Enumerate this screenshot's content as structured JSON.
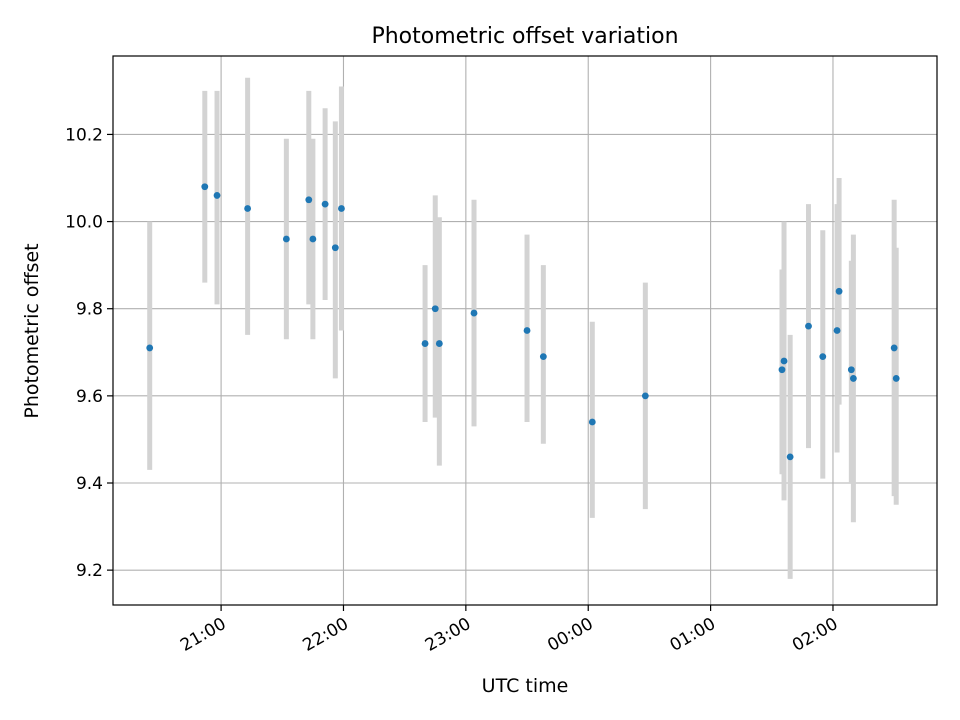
{
  "chart_data": {
    "type": "scatter",
    "title": "Photometric offset variation",
    "xlabel": "UTC time",
    "ylabel": "Photometric offset",
    "x_is_time": true,
    "xlim": [
      "20:07",
      "02:51"
    ],
    "ylim": [
      9.12,
      10.38
    ],
    "xticks": [
      "21:00",
      "22:00",
      "23:00",
      "00:00",
      "01:00",
      "02:00"
    ],
    "xtick_labels": [
      "21:00",
      "22:00",
      "23:00",
      "00:00",
      "01:00",
      "02:00"
    ],
    "yticks": [
      9.2,
      9.4,
      9.6,
      9.8,
      10.0,
      10.2
    ],
    "ytick_labels": [
      "9.2",
      "9.4",
      "9.6",
      "9.8",
      "10.0",
      "10.2"
    ],
    "grid": true,
    "colors": {
      "point": "#1f77b4",
      "errorbar": "#d3d3d3",
      "grid": "#b0b0b0"
    },
    "points": [
      {
        "time": "20:25",
        "y": 9.71,
        "low": 9.43,
        "high": 10.0
      },
      {
        "time": "20:52",
        "y": 10.08,
        "low": 9.86,
        "high": 10.3
      },
      {
        "time": "20:58",
        "y": 10.06,
        "low": 9.81,
        "high": 10.3
      },
      {
        "time": "21:13",
        "y": 10.03,
        "low": 9.74,
        "high": 10.33
      },
      {
        "time": "21:32",
        "y": 9.96,
        "low": 9.73,
        "high": 10.19
      },
      {
        "time": "21:43",
        "y": 10.05,
        "low": 9.81,
        "high": 10.3
      },
      {
        "time": "21:45",
        "y": 9.96,
        "low": 9.73,
        "high": 10.19
      },
      {
        "time": "21:51",
        "y": 10.04,
        "low": 9.82,
        "high": 10.26
      },
      {
        "time": "21:56",
        "y": 9.94,
        "low": 9.64,
        "high": 10.23
      },
      {
        "time": "21:59",
        "y": 10.03,
        "low": 9.75,
        "high": 10.31
      },
      {
        "time": "22:40",
        "y": 9.72,
        "low": 9.54,
        "high": 9.9
      },
      {
        "time": "22:45",
        "y": 9.8,
        "low": 9.55,
        "high": 10.06
      },
      {
        "time": "22:47",
        "y": 9.72,
        "low": 9.44,
        "high": 10.01
      },
      {
        "time": "23:04",
        "y": 9.79,
        "low": 9.53,
        "high": 10.05
      },
      {
        "time": "23:30",
        "y": 9.75,
        "low": 9.54,
        "high": 9.97
      },
      {
        "time": "23:38",
        "y": 9.69,
        "low": 9.49,
        "high": 9.9
      },
      {
        "time": "00:02",
        "y": 9.54,
        "low": 9.32,
        "high": 9.77
      },
      {
        "time": "00:28",
        "y": 9.6,
        "low": 9.34,
        "high": 9.86
      },
      {
        "time": "01:35",
        "y": 9.66,
        "low": 9.42,
        "high": 9.89
      },
      {
        "time": "01:36",
        "y": 9.68,
        "low": 9.36,
        "high": 10.0
      },
      {
        "time": "01:39",
        "y": 9.46,
        "low": 9.18,
        "high": 9.74
      },
      {
        "time": "01:48",
        "y": 9.76,
        "low": 9.48,
        "high": 10.04
      },
      {
        "time": "01:55",
        "y": 9.69,
        "low": 9.41,
        "high": 9.98
      },
      {
        "time": "02:02",
        "y": 9.75,
        "low": 9.47,
        "high": 10.04
      },
      {
        "time": "02:03",
        "y": 9.84,
        "low": 9.58,
        "high": 10.1
      },
      {
        "time": "02:09",
        "y": 9.66,
        "low": 9.4,
        "high": 9.91
      },
      {
        "time": "02:10",
        "y": 9.64,
        "low": 9.31,
        "high": 9.97
      },
      {
        "time": "02:30",
        "y": 9.71,
        "low": 9.37,
        "high": 10.05
      },
      {
        "time": "02:31",
        "y": 9.64,
        "low": 9.35,
        "high": 9.94
      }
    ]
  }
}
